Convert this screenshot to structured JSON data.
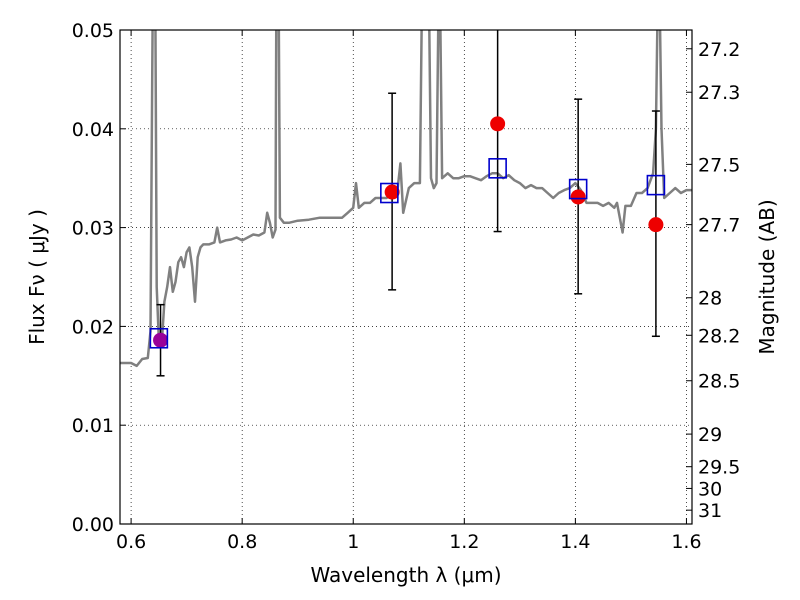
{
  "chart_data": {
    "type": "scatter",
    "xlabel": "Wavelength  λ (μm)",
    "ylabel": "Flux  Fν  ( μJy )",
    "y2label": "Magnitude (AB)",
    "xlim": [
      0.58,
      1.61
    ],
    "ylim": [
      0.0,
      0.05
    ],
    "grid": true,
    "xticks": [
      0.6,
      0.8,
      1.0,
      1.2,
      1.4,
      1.6
    ],
    "xtick_labels": [
      "0.6",
      "0.8",
      "1",
      "1.2",
      "1.4",
      "1.6"
    ],
    "yticks": [
      0.0,
      0.01,
      0.02,
      0.03,
      0.04,
      0.05
    ],
    "ytick_labels": [
      "0.00",
      "0.01",
      "0.02",
      "0.03",
      "0.04",
      "0.05"
    ],
    "mag_ticks": [
      {
        "label": "27.2",
        "flux": 0.0481
      },
      {
        "label": "27.3",
        "flux": 0.0437
      },
      {
        "label": "27.5",
        "flux": 0.0364
      },
      {
        "label": "27.7",
        "flux": 0.0303
      },
      {
        "label": "28",
        "flux": 0.0229
      },
      {
        "label": "28.2",
        "flux": 0.0191
      },
      {
        "label": "28.5",
        "flux": 0.0145
      },
      {
        "label": "29",
        "flux": 0.0091
      },
      {
        "label": "29.5",
        "flux": 0.0058
      },
      {
        "label": "30",
        "flux": 0.0036
      },
      {
        "label": "31",
        "flux": 0.0014
      }
    ],
    "sed_model": {
      "color": "#808080",
      "points": [
        [
          0.58,
          0.0163
        ],
        [
          0.59,
          0.0163
        ],
        [
          0.6,
          0.0163
        ],
        [
          0.61,
          0.016
        ],
        [
          0.62,
          0.0167
        ],
        [
          0.63,
          0.0168
        ],
        [
          0.635,
          0.0195
        ],
        [
          0.638,
          0.045
        ],
        [
          0.64,
          0.06
        ],
        [
          0.643,
          0.06
        ],
        [
          0.646,
          0.024
        ],
        [
          0.65,
          0.0185
        ],
        [
          0.655,
          0.0182
        ],
        [
          0.66,
          0.0225
        ],
        [
          0.665,
          0.024
        ],
        [
          0.67,
          0.026
        ],
        [
          0.675,
          0.0235
        ],
        [
          0.68,
          0.0245
        ],
        [
          0.685,
          0.0265
        ],
        [
          0.69,
          0.027
        ],
        [
          0.695,
          0.026
        ],
        [
          0.7,
          0.0275
        ],
        [
          0.705,
          0.028
        ],
        [
          0.71,
          0.026
        ],
        [
          0.715,
          0.0225
        ],
        [
          0.72,
          0.027
        ],
        [
          0.725,
          0.028
        ],
        [
          0.73,
          0.0283
        ],
        [
          0.74,
          0.0283
        ],
        [
          0.75,
          0.0285
        ],
        [
          0.755,
          0.03
        ],
        [
          0.76,
          0.0285
        ],
        [
          0.77,
          0.0287
        ],
        [
          0.78,
          0.0288
        ],
        [
          0.79,
          0.029
        ],
        [
          0.8,
          0.0287
        ],
        [
          0.81,
          0.029
        ],
        [
          0.82,
          0.0293
        ],
        [
          0.83,
          0.0292
        ],
        [
          0.84,
          0.0295
        ],
        [
          0.845,
          0.0315
        ],
        [
          0.85,
          0.0305
        ],
        [
          0.855,
          0.029
        ],
        [
          0.86,
          0.0298
        ],
        [
          0.862,
          0.06
        ],
        [
          0.865,
          0.06
        ],
        [
          0.868,
          0.031
        ],
        [
          0.875,
          0.0305
        ],
        [
          0.885,
          0.0305
        ],
        [
          0.9,
          0.0307
        ],
        [
          0.92,
          0.0308
        ],
        [
          0.94,
          0.031
        ],
        [
          0.96,
          0.031
        ],
        [
          0.98,
          0.031
        ],
        [
          0.99,
          0.0315
        ],
        [
          1.0,
          0.032
        ],
        [
          1.005,
          0.0345
        ],
        [
          1.01,
          0.032
        ],
        [
          1.02,
          0.0325
        ],
        [
          1.03,
          0.0325
        ],
        [
          1.04,
          0.033
        ],
        [
          1.05,
          0.033
        ],
        [
          1.06,
          0.033
        ],
        [
          1.07,
          0.0335
        ],
        [
          1.08,
          0.034
        ],
        [
          1.085,
          0.0365
        ],
        [
          1.09,
          0.0315
        ],
        [
          1.1,
          0.034
        ],
        [
          1.11,
          0.0345
        ],
        [
          1.12,
          0.0345
        ],
        [
          1.125,
          0.06
        ],
        [
          1.135,
          0.06
        ],
        [
          1.14,
          0.035
        ],
        [
          1.145,
          0.034
        ],
        [
          1.15,
          0.0345
        ],
        [
          1.155,
          0.06
        ],
        [
          1.16,
          0.035
        ],
        [
          1.17,
          0.0355
        ],
        [
          1.18,
          0.035
        ],
        [
          1.19,
          0.035
        ],
        [
          1.2,
          0.0352
        ],
        [
          1.21,
          0.0352
        ],
        [
          1.22,
          0.035
        ],
        [
          1.23,
          0.0348
        ],
        [
          1.24,
          0.0352
        ],
        [
          1.25,
          0.0355
        ],
        [
          1.26,
          0.0355
        ],
        [
          1.27,
          0.035
        ],
        [
          1.28,
          0.0353
        ],
        [
          1.29,
          0.0348
        ],
        [
          1.3,
          0.0345
        ],
        [
          1.31,
          0.034
        ],
        [
          1.32,
          0.0343
        ],
        [
          1.33,
          0.034
        ],
        [
          1.34,
          0.034
        ],
        [
          1.35,
          0.0335
        ],
        [
          1.36,
          0.033
        ],
        [
          1.37,
          0.0335
        ],
        [
          1.38,
          0.0338
        ],
        [
          1.39,
          0.034
        ],
        [
          1.4,
          0.0345
        ],
        [
          1.41,
          0.0338
        ],
        [
          1.42,
          0.0325
        ],
        [
          1.43,
          0.0325
        ],
        [
          1.44,
          0.0325
        ],
        [
          1.45,
          0.0322
        ],
        [
          1.46,
          0.0325
        ],
        [
          1.47,
          0.032
        ],
        [
          1.475,
          0.0325
        ],
        [
          1.48,
          0.031
        ],
        [
          1.485,
          0.0295
        ],
        [
          1.49,
          0.0322
        ],
        [
          1.5,
          0.0322
        ],
        [
          1.51,
          0.0335
        ],
        [
          1.52,
          0.0335
        ],
        [
          1.53,
          0.034
        ],
        [
          1.54,
          0.0355
        ],
        [
          1.545,
          0.04
        ],
        [
          1.55,
          0.06
        ],
        [
          1.555,
          0.04
        ],
        [
          1.56,
          0.033
        ],
        [
          1.57,
          0.0335
        ],
        [
          1.58,
          0.034
        ],
        [
          1.59,
          0.0335
        ],
        [
          1.6,
          0.0338
        ],
        [
          1.61,
          0.0338
        ]
      ]
    },
    "model_photometry": {
      "marker": "open-square",
      "color": "#0000cc",
      "points": [
        {
          "x": 0.65,
          "y": 0.0188
        },
        {
          "x": 1.065,
          "y": 0.0335
        },
        {
          "x": 1.26,
          "y": 0.036
        },
        {
          "x": 1.405,
          "y": 0.0339
        },
        {
          "x": 1.545,
          "y": 0.0343
        }
      ]
    },
    "observed_photometry": {
      "marker": "filled-circle",
      "colors": [
        "#990099",
        "#ee0000",
        "#ee0000",
        "#ee0000",
        "#ee0000"
      ],
      "points": [
        {
          "x": 0.653,
          "y": 0.0186,
          "err_low": 0.015,
          "err_high": 0.0222
        },
        {
          "x": 1.07,
          "y": 0.0336,
          "err_low": 0.0237,
          "err_high": 0.0436
        },
        {
          "x": 1.26,
          "y": 0.0405,
          "err_low": 0.0296,
          "err_high": 0.0512
        },
        {
          "x": 1.405,
          "y": 0.0331,
          "err_low": 0.0233,
          "err_high": 0.043
        },
        {
          "x": 1.545,
          "y": 0.0303,
          "err_low": 0.019,
          "err_high": 0.0418
        }
      ]
    }
  }
}
